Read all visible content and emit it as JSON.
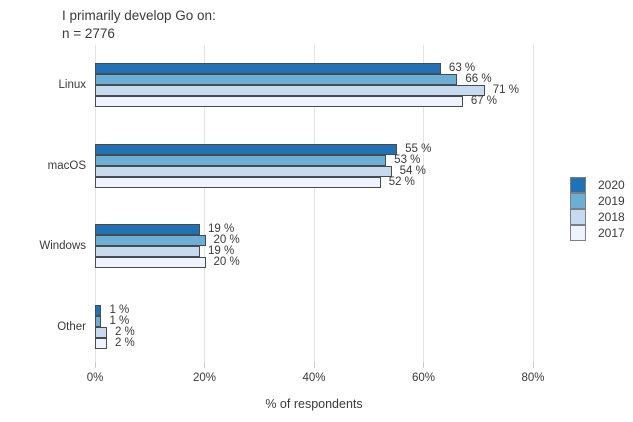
{
  "header": {
    "title": "I primarily develop Go on:",
    "subtitle": "n = 2776"
  },
  "chart_data": {
    "type": "bar",
    "orientation": "horizontal",
    "title": "I primarily develop Go on:",
    "subtitle": "n = 2776",
    "categories": [
      "Linux",
      "macOS",
      "Windows",
      "Other"
    ],
    "series": [
      {
        "name": "2020",
        "color": "#2171B5",
        "values": [
          63,
          55,
          19,
          1
        ]
      },
      {
        "name": "2019",
        "color": "#6BAED6",
        "values": [
          66,
          53,
          20,
          1
        ]
      },
      {
        "name": "2018",
        "color": "#C6DBEF",
        "values": [
          71,
          54,
          19,
          2
        ]
      },
      {
        "name": "2017",
        "color": "#EFF3FF",
        "values": [
          67,
          52,
          20,
          2
        ]
      }
    ],
    "value_label_suffix": " %",
    "xlabel": "% of respondents",
    "x_ticks": [
      {
        "value": 0,
        "label": "0%"
      },
      {
        "value": 20,
        "label": "20%"
      },
      {
        "value": 40,
        "label": "40%"
      },
      {
        "value": 60,
        "label": "60%"
      },
      {
        "value": 80,
        "label": "80%"
      }
    ],
    "xlim": [
      0,
      80
    ],
    "grid": "vertical",
    "legend_position": "right",
    "colors": {
      "bar_border": "#4a4a4a",
      "gridline": "#e4e4e4",
      "text": "#3a3a3a"
    }
  }
}
